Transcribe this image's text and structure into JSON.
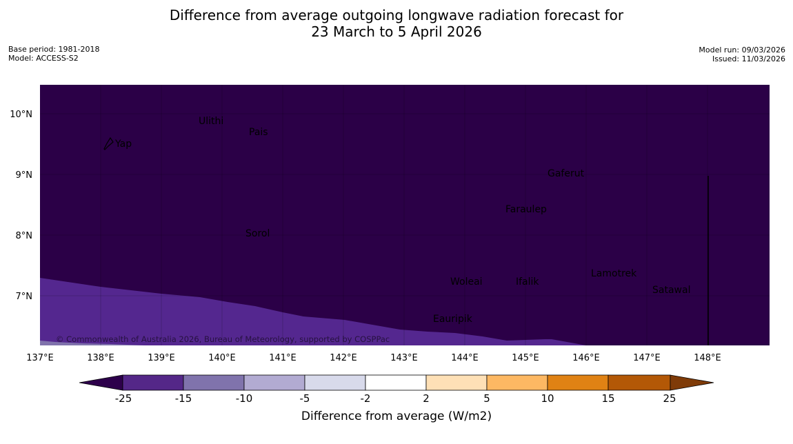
{
  "title": {
    "line1": "Difference from average outgoing longwave radiation forecast for",
    "line2": "23 March to 5 April 2026"
  },
  "meta": {
    "base_period": "Base period: 1981-2018",
    "model": "Model: ACCESS-S2",
    "model_run": "Model run: 09/03/2026",
    "issued": "Issued: 11/03/2026"
  },
  "map": {
    "lon_labels": [
      "137°E",
      "138°E",
      "139°E",
      "140°E",
      "141°E",
      "142°E",
      "143°E",
      "144°E",
      "145°E",
      "146°E",
      "147°E",
      "148°E"
    ],
    "lat_labels": [
      "10°N",
      "9°N",
      "8°N",
      "7°N"
    ],
    "places": [
      {
        "name": "Ulithi"
      },
      {
        "name": "Pais"
      },
      {
        "name": "Yap"
      },
      {
        "name": "Gaferut"
      },
      {
        "name": "Faraulep"
      },
      {
        "name": "Sorol"
      },
      {
        "name": "Lamotrek"
      },
      {
        "name": "Woleai"
      },
      {
        "name": "Ifalik"
      },
      {
        "name": "Satawal"
      },
      {
        "name": "Eauripik"
      }
    ],
    "copyright": "© Commonwealth of Australia 2026, Bureau of Meteorology, supported by COSPPac",
    "colors": {
      "background": "#2b0047",
      "band_minus25_minus15": "#54278f",
      "band_minus15_minus10": "#8073ac"
    }
  },
  "colorbar": {
    "ticks": [
      "-25",
      "-15",
      "-10",
      "-5",
      "-2",
      "2",
      "5",
      "10",
      "15",
      "25"
    ],
    "colors": [
      "#2d004b",
      "#542788",
      "#8073ac",
      "#b2abd2",
      "#d8daeb",
      "#ffffff",
      "#fee0b6",
      "#fdb863",
      "#e08214",
      "#b35806",
      "#7f3b08"
    ],
    "label": "Difference from average (W/m2)"
  }
}
